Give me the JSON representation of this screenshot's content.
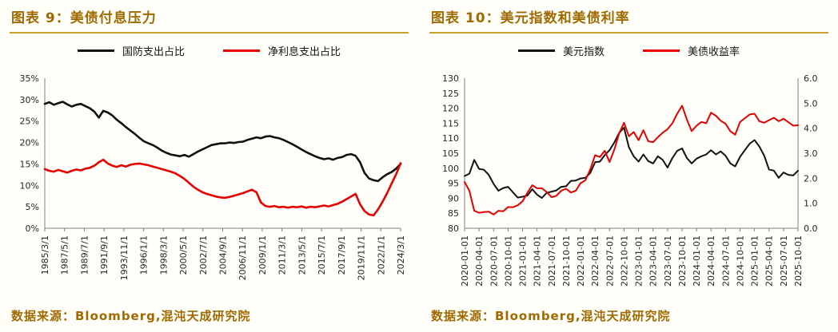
{
  "page": {
    "background": "#fffef8",
    "accent_color": "#a06a00",
    "rule_color": "#c8a02a"
  },
  "panels": [
    {
      "title": "图表 9：美债付息压力",
      "source": "数据来源：Bloomberg,混沌天成研究院",
      "chart_data": {
        "type": "line",
        "title": "美债付息压力",
        "legend_position": "top",
        "grid": false,
        "x_ticks": [
          "1985/3/1",
          "1987/5/1",
          "1989/7/1",
          "1991/9/1",
          "1993/11/1",
          "1996/1/1",
          "1998/3/1",
          "2000/5/1",
          "2002/7/1",
          "2004/9/1",
          "2006/11/1",
          "2009/1/1",
          "2011/3/1",
          "2013/5/1",
          "2015/7/1",
          "2017/9/1",
          "2019/11/1",
          "2022/1/1",
          "2024/3/1"
        ],
        "y_left": {
          "min": 0,
          "max": 35,
          "tick_labels": [
            "0%",
            "5%",
            "10%",
            "15%",
            "20%",
            "25%",
            "30%",
            "35%"
          ]
        },
        "series": [
          {
            "name": "国防支出占比",
            "color": "#111111",
            "axis": "left",
            "stroke_width": 2.6,
            "values": [
              29.0,
              29.4,
              28.8,
              29.2,
              29.5,
              28.9,
              28.4,
              28.8,
              29.0,
              28.5,
              28.0,
              27.2,
              25.8,
              27.4,
              27.0,
              26.3,
              25.3,
              24.5,
              23.6,
              22.8,
              22.0,
              21.1,
              20.3,
              19.8,
              19.4,
              18.8,
              18.1,
              17.6,
              17.2,
              17.0,
              16.8,
              17.1,
              16.7,
              17.3,
              17.9,
              18.4,
              18.9,
              19.4,
              19.6,
              19.8,
              19.8,
              20.0,
              19.9,
              20.1,
              20.2,
              20.6,
              20.9,
              21.2,
              21.0,
              21.4,
              21.5,
              21.2,
              21.0,
              20.6,
              20.1,
              19.6,
              19.0,
              18.4,
              17.8,
              17.3,
              16.8,
              16.4,
              16.1,
              16.3,
              16.0,
              16.4,
              16.6,
              17.1,
              17.3,
              16.9,
              15.4,
              12.9,
              11.6,
              11.2,
              11.0,
              11.9,
              12.6,
              13.1,
              13.9,
              15.0
            ]
          },
          {
            "name": "净利息支出占比",
            "color": "#e60000",
            "axis": "left",
            "stroke_width": 2.6,
            "values": [
              13.8,
              13.4,
              13.2,
              13.6,
              13.3,
              13.0,
              13.4,
              13.7,
              13.5,
              13.9,
              14.1,
              14.6,
              15.4,
              16.0,
              15.1,
              14.6,
              14.3,
              14.7,
              14.4,
              14.8,
              15.0,
              15.1,
              14.9,
              14.7,
              14.4,
              14.1,
              13.8,
              13.5,
              13.2,
              12.8,
              12.2,
              11.5,
              10.6,
              9.7,
              9.0,
              8.4,
              8.0,
              7.7,
              7.4,
              7.2,
              7.1,
              7.3,
              7.6,
              7.9,
              8.2,
              8.6,
              9.0,
              8.4,
              6.0,
              5.2,
              5.0,
              5.2,
              4.9,
              5.0,
              4.8,
              5.0,
              4.9,
              5.1,
              4.8,
              5.0,
              4.9,
              5.1,
              5.3,
              5.1,
              5.4,
              5.7,
              6.2,
              6.8,
              7.4,
              8.0,
              5.6,
              4.0,
              3.2,
              3.0,
              4.4,
              6.2,
              8.2,
              10.4,
              12.6,
              15.2
            ]
          }
        ]
      }
    },
    {
      "title": "图表 10：美元指数和美债利率",
      "source": "数据来源：Bloomberg,混沌天成研究院",
      "chart_data": {
        "type": "line",
        "title": "美元指数和美债利率",
        "legend_position": "top",
        "grid": false,
        "x_ticks": [
          "2020-01-01",
          "2020-04-01",
          "2020-07-01",
          "2020-10-01",
          "2021-01-01",
          "2021-04-01",
          "2021-07-01",
          "2021-10-01",
          "2022-01-01",
          "2022-04-01",
          "2022-07-01",
          "2022-10-01",
          "2023-01-01",
          "2023-04-01",
          "2023-07-01",
          "2023-10-01",
          "2024-01-01",
          "2024-04-01",
          "2024-07-01",
          "2024-10-01",
          "2025-01-01",
          "2025-04-01",
          "2025-07-01",
          "2025-10-01"
        ],
        "y_left": {
          "min": 80,
          "max": 130,
          "tick_labels": [
            "80",
            "85",
            "90",
            "95",
            "100",
            "105",
            "110",
            "115",
            "120",
            "125",
            "130"
          ]
        },
        "y_right": {
          "min": 0,
          "max": 6,
          "tick_labels": [
            "0.0",
            "1.0",
            "2.0",
            "3.0",
            "4.0",
            "5.0",
            "6.0"
          ]
        },
        "series": [
          {
            "name": "美元指数",
            "color": "#111111",
            "axis": "left",
            "stroke_width": 2.0,
            "values": [
              97.4,
              98.2,
              102.8,
              99.8,
              99.5,
              97.8,
              94.8,
              92.5,
              93.4,
              93.8,
              92.0,
              90.2,
              90.5,
              90.9,
              93.0,
              91.2,
              90.1,
              91.8,
              92.2,
              92.6,
              93.8,
              94.0,
              95.8,
              95.9,
              96.6,
              96.8,
              98.4,
              102.0,
              102.2,
              104.4,
              106.0,
              108.6,
              111.8,
              113.5,
              107.0,
              104.0,
              102.2,
              104.6,
              102.4,
              101.6,
              104.0,
              102.8,
              100.2,
              103.4,
              105.8,
              106.6,
              103.4,
              101.6,
              103.2,
              104.0,
              104.6,
              106.0,
              104.6,
              105.6,
              104.2,
              101.6,
              100.6,
              103.8,
              106.0,
              108.2,
              109.4,
              107.2,
              104.2,
              99.6,
              99.2,
              96.8,
              98.6,
              97.8,
              97.6,
              99.2
            ]
          },
          {
            "name": "美债收益率",
            "color": "#e60000",
            "axis": "right",
            "stroke_width": 2.0,
            "values": [
              1.85,
              1.5,
              0.7,
              0.62,
              0.65,
              0.66,
              0.55,
              0.7,
              0.68,
              0.85,
              0.84,
              0.92,
              1.08,
              1.42,
              1.72,
              1.6,
              1.6,
              1.45,
              1.24,
              1.3,
              1.5,
              1.58,
              1.43,
              1.5,
              1.8,
              1.92,
              2.35,
              2.92,
              2.85,
              3.1,
              2.65,
              3.15,
              3.8,
              4.22,
              3.68,
              3.85,
              3.52,
              3.92,
              3.48,
              3.44,
              3.64,
              3.82,
              3.96,
              4.2,
              4.58,
              4.9,
              4.35,
              3.88,
              4.1,
              4.25,
              4.2,
              4.62,
              4.5,
              4.3,
              4.18,
              3.88,
              3.74,
              4.25,
              4.4,
              4.55,
              4.58,
              4.28,
              4.22,
              4.32,
              4.42,
              4.28,
              4.38,
              4.24,
              4.1,
              4.12
            ]
          }
        ]
      }
    }
  ]
}
